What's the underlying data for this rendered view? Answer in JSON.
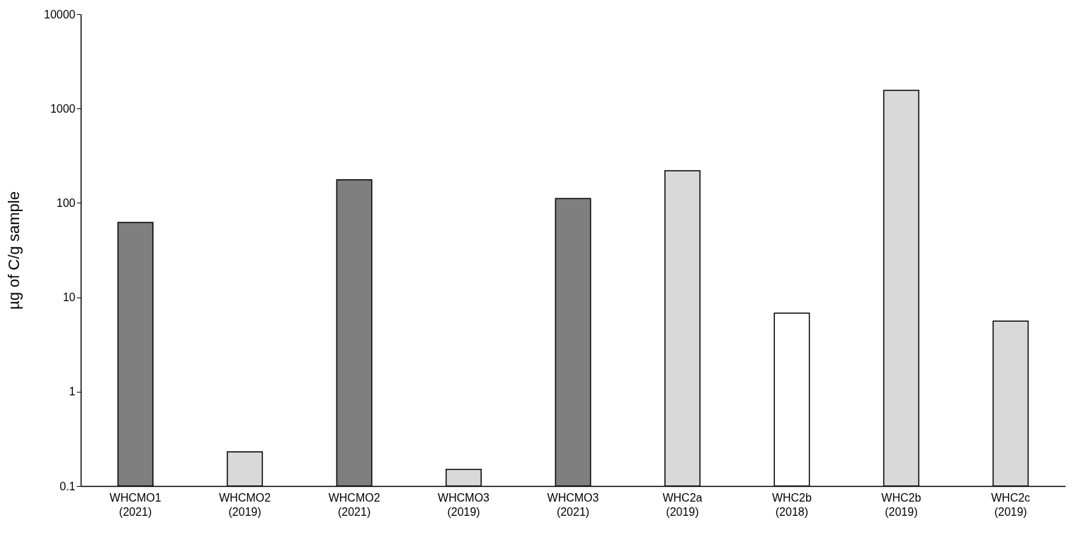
{
  "chart_data": {
    "type": "bar",
    "ylabel": "µg of C/g sample",
    "categories": [
      "WHCMO1\n(2021)",
      "WHCMO2\n(2019)",
      "WHCMO2\n(2021)",
      "WHCMO3\n(2019)",
      "WHCMO3\n(2021)",
      "WHC2a\n(2019)",
      "WHC2b\n(2018)",
      "WHC2b\n(2019)",
      "WHC2c\n(2019)"
    ],
    "values": [
      62,
      0.23,
      176,
      0.15,
      111,
      219,
      6.8,
      1560,
      5.6
    ],
    "colors": [
      "#7f7f7f",
      "#d9d9d9",
      "#7f7f7f",
      "#d9d9d9",
      "#7f7f7f",
      "#d9d9d9",
      "#ffffff",
      "#d9d9d9",
      "#d9d9d9"
    ],
    "log": true,
    "ylim": [
      0.1,
      10000
    ],
    "yticks": [
      0.1,
      1,
      10,
      100,
      1000,
      10000
    ],
    "grid": false
  }
}
